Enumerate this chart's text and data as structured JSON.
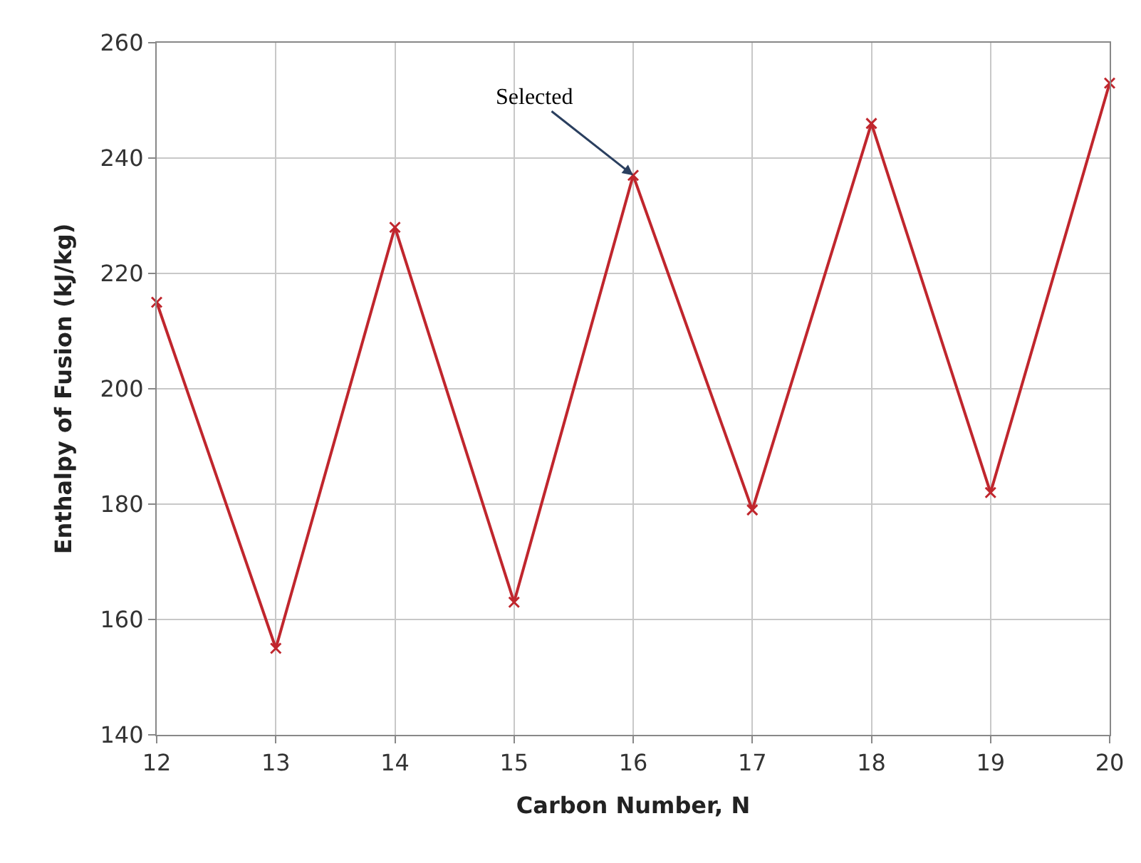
{
  "chart_data": {
    "type": "line",
    "xlabel": "Carbon Number, N",
    "ylabel": "Enthalpy of Fusion (kJ/kg)",
    "x": [
      12,
      13,
      14,
      15,
      16,
      17,
      18,
      19,
      20
    ],
    "series": [
      {
        "color": "#c0262d",
        "values": [
          215,
          155,
          228,
          163,
          237,
          179,
          246,
          182,
          253
        ]
      }
    ],
    "xlim": [
      12,
      20
    ],
    "xticks": [
      12,
      13,
      14,
      15,
      16,
      17,
      18,
      19,
      20
    ],
    "ylim": [
      140,
      260
    ],
    "yticks": [
      140,
      160,
      180,
      200,
      220,
      240,
      260
    ],
    "grid": true,
    "marker": "cross",
    "line_style": "solid",
    "legend": false,
    "annotations": [
      {
        "text": "Selected",
        "x": 16,
        "y": 237
      }
    ]
  }
}
